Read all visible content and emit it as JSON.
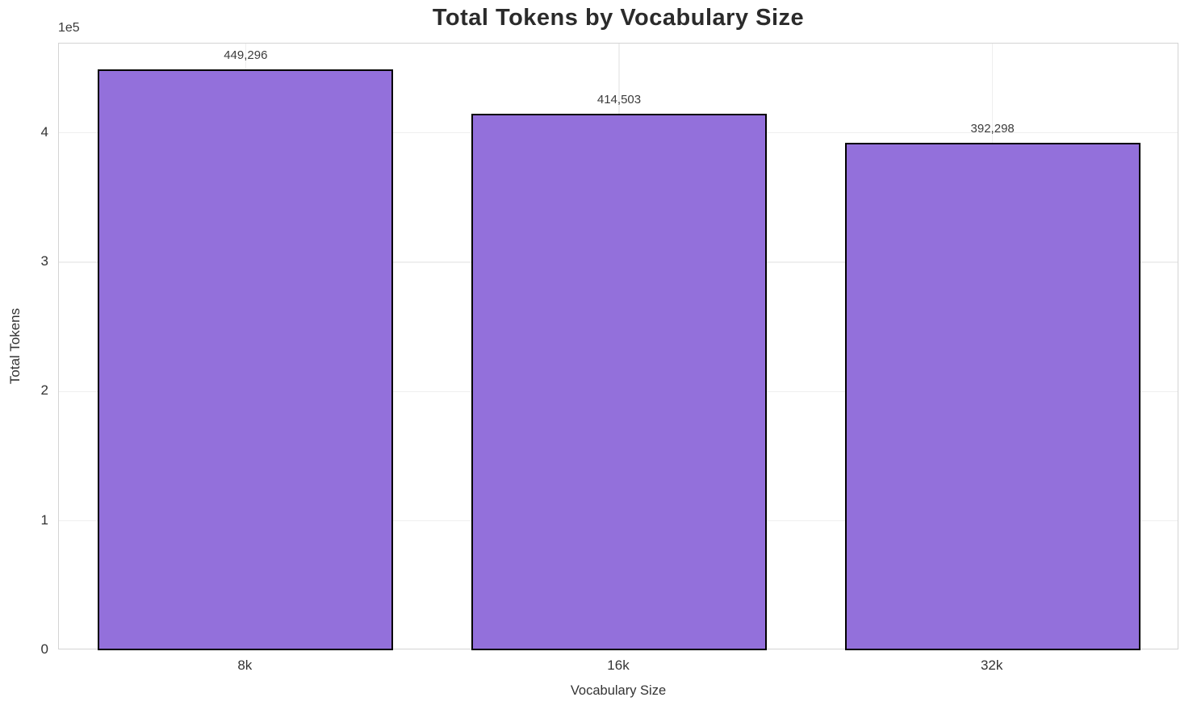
{
  "chart_data": {
    "type": "bar",
    "title": "Total Tokens by Vocabulary Size",
    "xlabel": "Vocabulary Size",
    "ylabel": "Total Tokens",
    "categories": [
      "8k",
      "16k",
      "32k"
    ],
    "values": [
      449296,
      414503,
      392298
    ],
    "value_labels": [
      "449,296",
      "414,503",
      "392,298"
    ],
    "ylim": [
      0,
      469000
    ],
    "yticks": [
      {
        "label": "0",
        "value": 0
      },
      {
        "label": "1",
        "value": 100000
      },
      {
        "label": "2",
        "value": 200000
      },
      {
        "label": "3",
        "value": 300000
      },
      {
        "label": "4",
        "value": 400000
      }
    ],
    "y_offset_text": "1e5",
    "grid": true,
    "legend_position": "none",
    "bar_width_fraction": 0.79,
    "colors": {
      "bar_fill": "#9370DB",
      "bar_edge": "#000000",
      "grid_line": "#efefef",
      "spine": "#d4d4d4",
      "title_text": "#2b2b2b",
      "tick_text": "#333333"
    }
  }
}
